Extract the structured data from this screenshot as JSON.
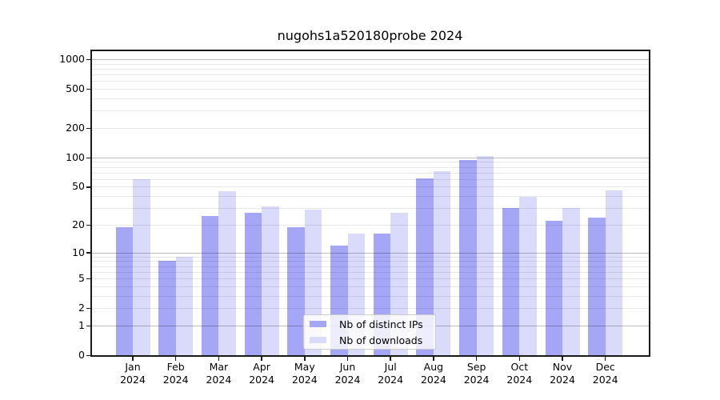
{
  "title": "nugohs1a520180probe 2024",
  "chart_data": {
    "type": "bar",
    "title": "nugohs1a520180probe 2024",
    "categories": [
      "Jan",
      "Feb",
      "Mar",
      "Apr",
      "May",
      "Jun",
      "Jul",
      "Aug",
      "Sep",
      "Oct",
      "Nov",
      "Dec"
    ],
    "x_sublabel": "2024",
    "series": [
      {
        "name": "Nb of distinct IPs",
        "color": "#a6a6f6",
        "values": [
          19,
          8,
          25,
          27,
          19,
          12,
          16,
          61,
          95,
          30,
          22,
          24
        ]
      },
      {
        "name": "Nb of downloads",
        "color": "#dadafa",
        "values": [
          60,
          9,
          45,
          31,
          29,
          16,
          27,
          72,
          103,
          39,
          30,
          46
        ]
      }
    ],
    "y_ticks": [
      0,
      1,
      2,
      5,
      10,
      20,
      50,
      100,
      200,
      500,
      1000
    ],
    "y_scale": "log10(value+1)",
    "ylim": [
      0,
      1000
    ],
    "grid": "on",
    "legend_position": "inside-bottom-center"
  }
}
